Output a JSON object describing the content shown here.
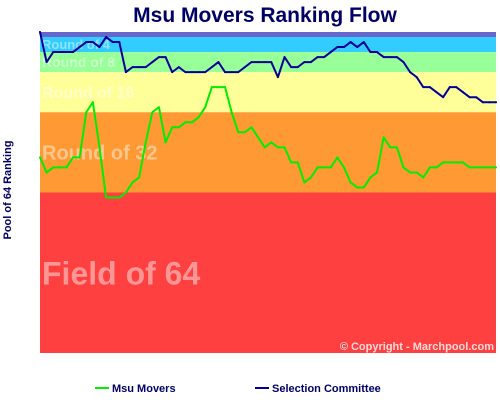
{
  "chart_data": {
    "type": "line",
    "title": "Msu Movers Ranking Flow",
    "ylabel": "Pool of 64 Ranking",
    "xlabel": "",
    "ylim": [
      64,
      0
    ],
    "bands": [
      {
        "label": "",
        "from": 0,
        "to": 1,
        "color": "#6666cc"
      },
      {
        "label": "Round of 4",
        "from": 1,
        "to": 4,
        "color": "#33ccff"
      },
      {
        "label": "Round of 8",
        "from": 4,
        "to": 8,
        "color": "#99ff99"
      },
      {
        "label": "Round of 16",
        "from": 8,
        "to": 16,
        "color": "#ffff99"
      },
      {
        "label": "Round of 32",
        "from": 16,
        "to": 32,
        "color": "#ff9933"
      },
      {
        "label": "Field of 64",
        "from": 32,
        "to": 64,
        "color": "#ff4040"
      }
    ],
    "series": [
      {
        "name": "Msu Movers",
        "color": "#00ee00",
        "values": [
          25,
          28,
          27,
          27,
          27,
          25,
          25,
          16,
          14,
          23,
          33,
          33,
          33,
          32,
          30,
          29,
          22,
          16,
          15,
          22,
          19,
          19,
          18,
          18,
          17,
          15,
          11,
          11,
          11,
          16,
          20,
          20,
          19,
          21,
          23,
          22,
          23,
          23,
          26,
          26,
          30,
          29,
          27,
          27,
          27,
          25,
          27,
          30,
          31,
          31,
          29,
          28,
          21,
          23,
          23,
          27,
          28,
          28,
          29,
          27,
          27,
          26,
          26,
          26,
          26,
          27,
          27,
          27,
          27,
          27
        ]
      },
      {
        "name": "Selection Committee",
        "color": "#000099",
        "values": [
          0,
          6,
          4,
          4,
          4,
          4,
          3,
          2,
          2,
          3,
          1,
          2,
          2,
          8,
          7,
          7,
          7,
          6,
          5,
          5,
          8,
          7,
          8,
          8,
          8,
          8,
          7,
          6,
          8,
          8,
          8,
          7,
          6,
          6,
          6,
          6,
          9,
          5,
          7,
          7,
          6,
          6,
          5,
          5,
          4,
          3,
          3,
          2,
          3,
          2,
          4,
          4,
          5,
          5,
          5,
          6,
          8,
          9,
          11,
          11,
          12,
          13,
          11,
          11,
          12,
          13,
          13,
          14,
          14,
          14
        ]
      }
    ],
    "grid": false,
    "legend_position": "bottom"
  },
  "copyright": "© Copyright - Marchpool.com"
}
